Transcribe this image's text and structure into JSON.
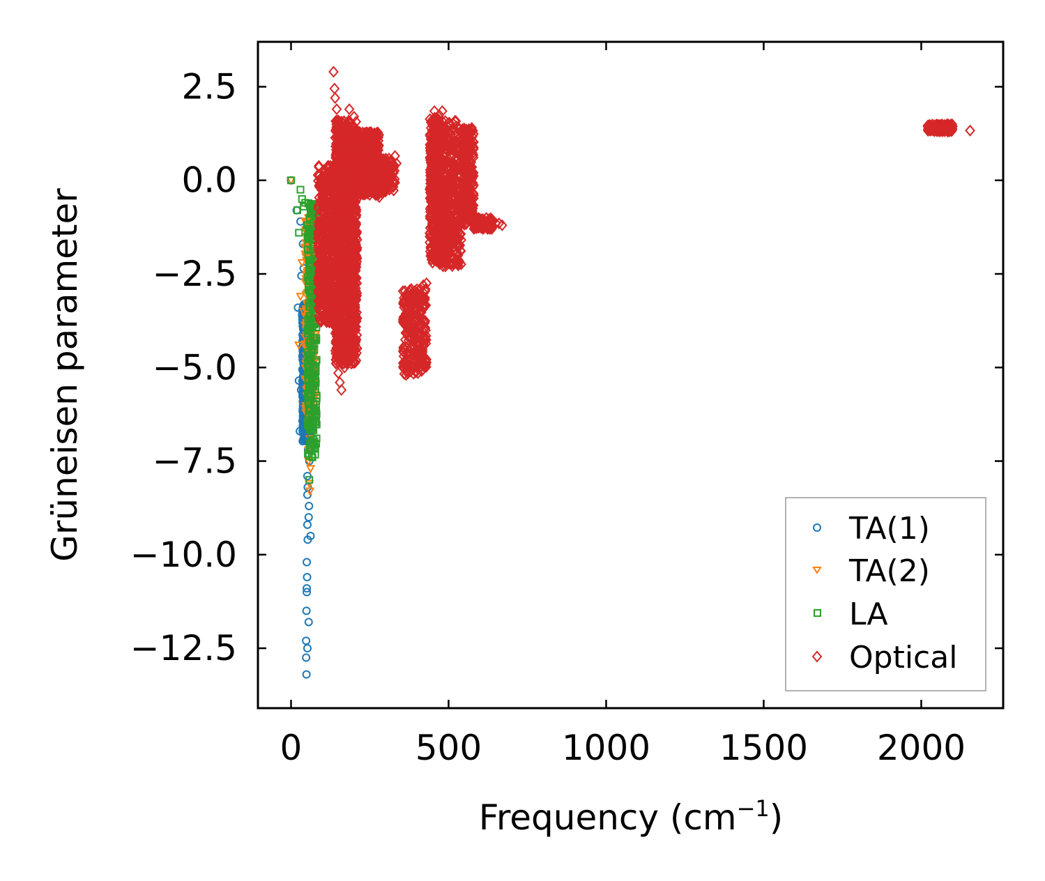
{
  "chart_data": {
    "type": "scatter",
    "title": "",
    "xlabel": "Frequency (cm",
    "xlabel_sup": "−1",
    "xlabel_end": ")",
    "ylabel": "Grüneisen parameter",
    "xlim": [
      -105,
      2260
    ],
    "ylim": [
      -14.1,
      3.7
    ],
    "xticks": [
      0,
      500,
      1000,
      1500,
      2000
    ],
    "xtick_labels": [
      "0",
      "500",
      "1000",
      "1500",
      "2000"
    ],
    "yticks": [
      2.5,
      0.0,
      -2.5,
      -5.0,
      -7.5,
      -10.0,
      -12.5
    ],
    "ytick_labels": [
      "2.5",
      "0.0",
      "−2.5",
      "−5.0",
      "−7.5",
      "−10.0",
      "−12.5"
    ],
    "grid": false,
    "legend_position": "bottom-right",
    "series": [
      {
        "name": "TA(1)",
        "marker": "circle",
        "color": "#1f77b4",
        "points": [
          [
            0,
            0.0
          ],
          [
            18,
            -0.8
          ],
          [
            22,
            -3.4
          ],
          [
            25,
            -5.35
          ],
          [
            28,
            -6.7
          ],
          [
            30,
            -1.1
          ],
          [
            32,
            -5.6
          ],
          [
            33,
            -2.55
          ],
          [
            35,
            -3.6
          ],
          [
            38,
            -1.7
          ],
          [
            40,
            -2.35
          ],
          [
            40,
            -4.8
          ],
          [
            42,
            -3.9
          ],
          [
            43,
            -5.3
          ],
          [
            45,
            -4.1
          ],
          [
            45,
            -6.1
          ],
          [
            46,
            -3.5
          ],
          [
            47,
            -5.0
          ],
          [
            48,
            -4.4
          ],
          [
            48,
            -12.3
          ],
          [
            48,
            -12.75
          ],
          [
            49,
            -13.2
          ],
          [
            49,
            -11.5
          ],
          [
            50,
            -11.0
          ],
          [
            50,
            -10.2
          ],
          [
            50,
            -5.8
          ],
          [
            51,
            -10.6
          ],
          [
            51,
            -4.7
          ],
          [
            52,
            -9.2
          ],
          [
            52,
            -7.9
          ],
          [
            52,
            -8.4
          ],
          [
            53,
            -8.2
          ],
          [
            53,
            -9.6
          ],
          [
            54,
            -6.9
          ],
          [
            54,
            -7.2
          ],
          [
            55,
            -3.9
          ],
          [
            55,
            -6.5
          ],
          [
            56,
            -9.0
          ],
          [
            56,
            -11.8
          ],
          [
            57,
            -8.7
          ],
          [
            58,
            -7.5
          ],
          [
            58,
            -6.0
          ],
          [
            60,
            -4.3
          ],
          [
            60,
            -5.6
          ],
          [
            62,
            -9.5
          ],
          [
            64,
            -6.6
          ],
          [
            52,
            -12.5
          ],
          [
            50,
            -10.9
          ],
          [
            46,
            -5.7
          ],
          [
            44,
            -4.6
          ]
        ],
        "dense_bands": [
          {
            "x0": 36,
            "x1": 62,
            "y0": -3.3,
            "y1": -7.0,
            "count": 520
          }
        ]
      },
      {
        "name": "TA(2)",
        "marker": "triangle-down",
        "color": "#ff7f0e",
        "points": [
          [
            0,
            0.0
          ],
          [
            25,
            -4.4
          ],
          [
            30,
            -3.1
          ],
          [
            35,
            -2.2
          ],
          [
            40,
            -3.5
          ],
          [
            45,
            -1.8
          ],
          [
            48,
            -4.9
          ],
          [
            50,
            -2.0
          ],
          [
            52,
            -6.1
          ],
          [
            55,
            -7.2
          ],
          [
            56,
            -7.5
          ],
          [
            58,
            -8.1
          ],
          [
            60,
            -8.3
          ],
          [
            60,
            -6.9
          ],
          [
            62,
            -5.4
          ],
          [
            64,
            -4.0
          ],
          [
            66,
            -5.0
          ],
          [
            68,
            -3.2
          ],
          [
            70,
            -6.3
          ],
          [
            72,
            -4.7
          ],
          [
            55,
            -1.0
          ],
          [
            52,
            -3.0
          ],
          [
            46,
            -4.2
          ],
          [
            62,
            -7.7
          ]
        ],
        "dense_bands": [
          {
            "x0": 45,
            "x1": 78,
            "y0": -1.0,
            "y1": -6.5,
            "count": 220
          }
        ]
      },
      {
        "name": "LA",
        "marker": "square",
        "color": "#2ca02c",
        "points": [
          [
            0,
            0.0
          ],
          [
            20,
            -0.8
          ],
          [
            25,
            -1.4
          ],
          [
            30,
            -0.25
          ],
          [
            35,
            -0.5
          ],
          [
            40,
            -0.7
          ],
          [
            45,
            -0.6
          ],
          [
            50,
            -1.2
          ],
          [
            55,
            -2.0
          ],
          [
            58,
            -8.0
          ],
          [
            60,
            -3.0
          ],
          [
            62,
            -7.2
          ],
          [
            65,
            -4.5
          ],
          [
            68,
            -7.4
          ],
          [
            70,
            -6.5
          ],
          [
            72,
            -5.5
          ],
          [
            74,
            -3.8
          ],
          [
            76,
            -2.6
          ],
          [
            66,
            -1.5
          ],
          [
            64,
            -0.9
          ]
        ],
        "dense_bands": [
          {
            "x0": 52,
            "x1": 82,
            "y0": -0.6,
            "y1": -7.4,
            "count": 260
          }
        ]
      },
      {
        "name": "Optical",
        "marker": "diamond",
        "color": "#d62728",
        "points": [
          [
            135,
            2.9
          ],
          [
            138,
            2.45
          ],
          [
            140,
            2.2
          ],
          [
            145,
            1.9
          ],
          [
            150,
            1.6
          ],
          [
            155,
            1.4
          ],
          [
            160,
            1.1
          ],
          [
            185,
            1.9
          ],
          [
            200,
            1.7
          ],
          [
            150,
            -5.15
          ],
          [
            155,
            -5.4
          ],
          [
            160,
            -5.6
          ],
          [
            170,
            -5.0
          ],
          [
            175,
            -4.6
          ],
          [
            205,
            -2.4
          ],
          [
            180,
            -3.2
          ],
          [
            330,
            0.65
          ],
          [
            335,
            0.45
          ],
          [
            300,
            -0.3
          ],
          [
            280,
            -0.45
          ],
          [
            290,
            -0.35
          ],
          [
            640,
            -1.1
          ],
          [
            650,
            -1.15
          ],
          [
            660,
            -1.15
          ],
          [
            670,
            -1.2
          ],
          [
            620,
            -1.15
          ],
          [
            600,
            -1.2
          ],
          [
            590,
            -1.1
          ],
          [
            2030,
            1.45
          ],
          [
            2050,
            1.45
          ],
          [
            2060,
            1.4
          ],
          [
            2075,
            1.38
          ],
          [
            2085,
            1.35
          ],
          [
            2095,
            1.32
          ],
          [
            2155,
            1.33
          ],
          [
            480,
            1.85
          ],
          [
            470,
            1.75
          ],
          [
            455,
            1.85
          ],
          [
            520,
            -0.5
          ],
          [
            530,
            -0.8
          ],
          [
            480,
            -2.2
          ],
          [
            490,
            -2.3
          ],
          [
            365,
            -5.2
          ],
          [
            372,
            -5.0
          ],
          [
            400,
            -3.2
          ],
          [
            410,
            -2.9
          ],
          [
            420,
            -2.8
          ],
          [
            430,
            -2.75
          ],
          [
            520,
            -0.2
          ],
          [
            505,
            -1.2
          ]
        ],
        "dense_bands": [
          {
            "x0": 85,
            "x1": 140,
            "y0": 0.4,
            "y1": -3.8,
            "count": 500
          },
          {
            "x0": 140,
            "x1": 210,
            "y0": 1.6,
            "y1": -4.9,
            "count": 1300
          },
          {
            "x0": 210,
            "x1": 280,
            "y0": 1.3,
            "y1": -0.4,
            "count": 380
          },
          {
            "x0": 280,
            "x1": 330,
            "y0": 0.6,
            "y1": -0.3,
            "count": 120
          },
          {
            "x0": 440,
            "x1": 470,
            "y0": 1.7,
            "y1": -2.2,
            "count": 380
          },
          {
            "x0": 470,
            "x1": 540,
            "y0": 1.6,
            "y1": -2.3,
            "count": 420
          },
          {
            "x0": 540,
            "x1": 580,
            "y0": 1.4,
            "y1": -1.2,
            "count": 260
          },
          {
            "x0": 580,
            "x1": 640,
            "y0": -1.0,
            "y1": -1.3,
            "count": 80
          },
          {
            "x0": 2020,
            "x1": 2100,
            "y0": 1.5,
            "y1": 1.3,
            "count": 120
          },
          {
            "x0": 355,
            "x1": 430,
            "y0": -2.9,
            "y1": -5.2,
            "count": 260
          }
        ]
      }
    ]
  }
}
